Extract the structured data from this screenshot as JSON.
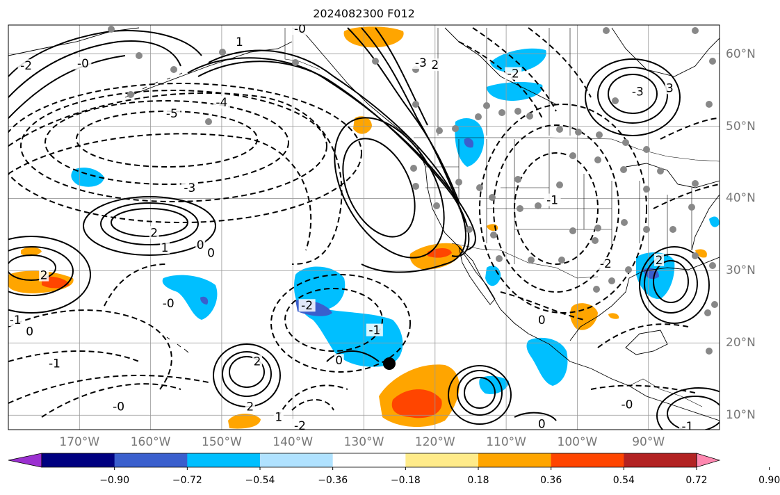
{
  "title": "2024082300 F012",
  "axes": {
    "lon_labels": [
      "170°W",
      "160°W",
      "150°W",
      "140°W",
      "130°W",
      "120°W",
      "110°W",
      "100°W",
      "90°W"
    ],
    "lon_values": [
      -170,
      -160,
      -150,
      -140,
      -130,
      -120,
      -110,
      -100,
      -90
    ],
    "lat_labels": [
      "60°N",
      "50°N",
      "40°N",
      "30°N",
      "20°N",
      "10°N"
    ],
    "lat_values": [
      60,
      50,
      40,
      30,
      20,
      10
    ],
    "lon_range": [
      -180,
      -80
    ],
    "lat_range": [
      8,
      64
    ],
    "grid": true
  },
  "colorbar": {
    "tick_labels": [
      "−0.90",
      "−0.72",
      "−0.54",
      "−0.36",
      "−0.18",
      "0.18",
      "0.36",
      "0.54",
      "0.72",
      "0.90"
    ],
    "colors": [
      "#9b30d0",
      "#000080",
      "#3a5fcd",
      "#00bfff",
      "#b0e2ff",
      "#ffffff",
      "#ffeb8a",
      "#ffa500",
      "#ff4500",
      "#b22222",
      "#ff88b0"
    ],
    "extend": "both"
  },
  "contour_labels": [
    {
      "text": "-5",
      "lon": -157,
      "lat": 51.8
    },
    {
      "text": "-4",
      "lon": -150,
      "lat": 53.3
    },
    {
      "text": "-3",
      "lon": -154.5,
      "lat": 41.5
    },
    {
      "text": "-2",
      "lon": -177.5,
      "lat": 58.4
    },
    {
      "text": "-0",
      "lon": -169.5,
      "lat": 58.7
    },
    {
      "text": "2",
      "lon": -159.5,
      "lat": 35.3
    },
    {
      "text": "1",
      "lon": -158,
      "lat": 33.2
    },
    {
      "text": "0",
      "lon": -153,
      "lat": 33.6
    },
    {
      "text": "0",
      "lon": -151.5,
      "lat": 32.5
    },
    {
      "text": "2",
      "lon": -175,
      "lat": 29.4
    },
    {
      "text": "-1",
      "lon": -179,
      "lat": 23.2
    },
    {
      "text": "0",
      "lon": -177,
      "lat": 21.6
    },
    {
      "text": "-1",
      "lon": -173.5,
      "lat": 17.2
    },
    {
      "text": "-0",
      "lon": -164.5,
      "lat": 11.2
    },
    {
      "text": "-0",
      "lon": -157.5,
      "lat": 25.5
    },
    {
      "text": "2",
      "lon": -145,
      "lat": 17.5
    },
    {
      "text": "2",
      "lon": -146,
      "lat": 11.2
    },
    {
      "text": "1",
      "lon": -142,
      "lat": 9.8
    },
    {
      "text": "-2",
      "lon": -139,
      "lat": 8.6
    },
    {
      "text": "-2",
      "lon": -138,
      "lat": 25.2
    },
    {
      "text": "-1",
      "lon": -128.5,
      "lat": 21.8
    },
    {
      "text": "0",
      "lon": -133.5,
      "lat": 17.6
    },
    {
      "text": "-3",
      "lon": -122,
      "lat": 58.8
    },
    {
      "text": "2",
      "lon": -120,
      "lat": 58.5
    },
    {
      "text": "-2",
      "lon": -109,
      "lat": 57.3
    },
    {
      "text": "-3",
      "lon": -91.5,
      "lat": 54.8
    },
    {
      "text": "3",
      "lon": -87,
      "lat": 55.3
    },
    {
      "text": "-1",
      "lon": -103.5,
      "lat": 39.8
    },
    {
      "text": "-2",
      "lon": -96,
      "lat": 31
    },
    {
      "text": "2",
      "lon": -88.5,
      "lat": 31.5
    },
    {
      "text": "-0",
      "lon": -93,
      "lat": 11.5
    },
    {
      "text": "0",
      "lon": -105,
      "lat": 23.2
    },
    {
      "text": "0",
      "lon": -105,
      "lat": 8.8
    },
    {
      "text": "-1",
      "lon": -84.5,
      "lat": 8.5
    },
    {
      "text": "-0",
      "lon": -139,
      "lat": 63.5
    },
    {
      "text": "1",
      "lon": -147.5,
      "lat": 61.7
    }
  ]
}
